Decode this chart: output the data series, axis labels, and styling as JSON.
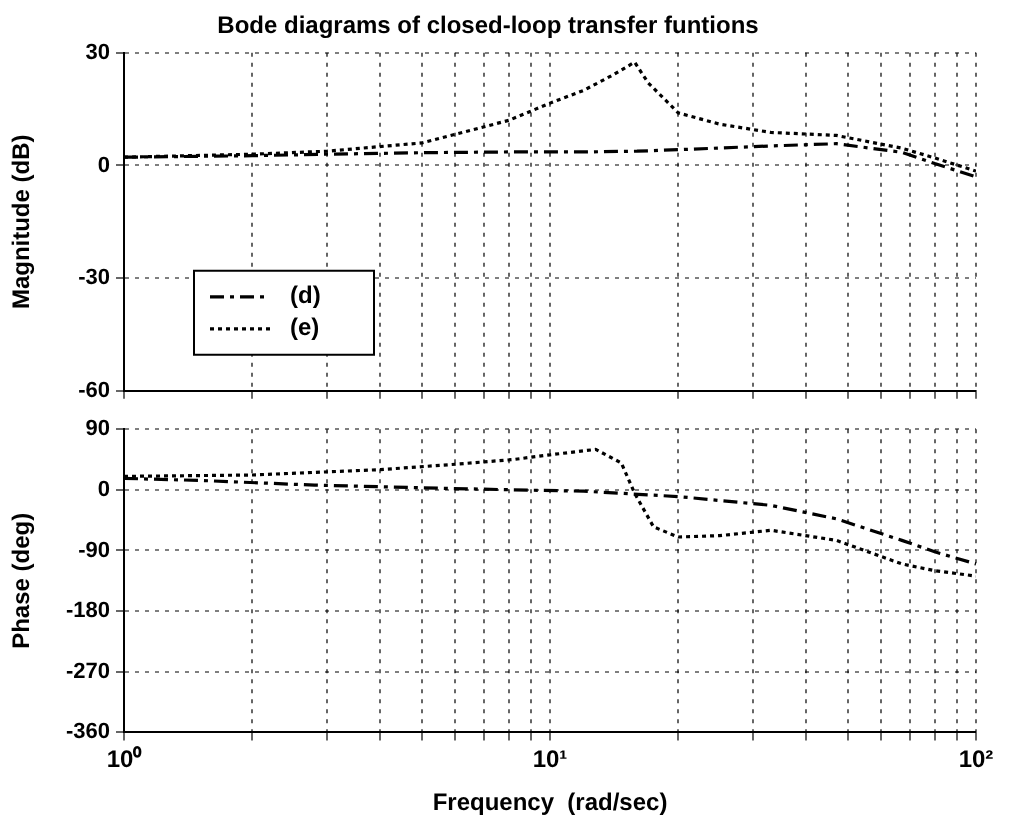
{
  "chart_data": [
    {
      "type": "line",
      "title": "Bode diagrams of closed-loop transfer funtions",
      "ylabel": "Magnitude (dB)",
      "xlim": [
        1,
        100
      ],
      "ylim": [
        -60,
        30
      ],
      "log": "x",
      "grid": true,
      "legend": "bottom left",
      "tick_labels": "y",
      "marker": "none",
      "xticks": [
        {
          "value": 1,
          "label": null
        },
        {
          "value": 2,
          "label": null
        },
        {
          "value": 3,
          "label": null
        },
        {
          "value": 4,
          "label": null
        },
        {
          "value": 5,
          "label": null
        },
        {
          "value": 6,
          "label": null
        },
        {
          "value": 7,
          "label": null
        },
        {
          "value": 8,
          "label": null
        },
        {
          "value": 9,
          "label": null
        },
        {
          "value": 10,
          "label": null
        },
        {
          "value": 20,
          "label": null
        },
        {
          "value": 30,
          "label": null
        },
        {
          "value": 40,
          "label": null
        },
        {
          "value": 50,
          "label": null
        },
        {
          "value": 60,
          "label": null
        },
        {
          "value": 70,
          "label": null
        },
        {
          "value": 80,
          "label": null
        },
        {
          "value": 90,
          "label": null
        },
        {
          "value": 100,
          "label": null
        }
      ],
      "yticks": [
        -60,
        -30,
        0,
        30
      ],
      "series": [
        {
          "name": "(d)",
          "color": "#000000",
          "line_style": "dashed",
          "x": [
            1,
            2,
            3,
            5,
            8,
            12,
            16,
            20,
            33,
            47,
            67,
            80,
            100
          ],
          "values": [
            2.2,
            2.6,
            3,
            3.4,
            3.6,
            3.6,
            3.8,
            4.2,
            5.2,
            5.8,
            3.5,
            0.5,
            -3
          ]
        },
        {
          "name": "(e)",
          "color": "#000000",
          "line_style": "dotted",
          "x": [
            1,
            2,
            3,
            5,
            8,
            10,
            12,
            14,
            15.8,
            17,
            20,
            25,
            33,
            47,
            67,
            80,
            100
          ],
          "values": [
            2.2,
            3,
            3.8,
            6,
            12,
            16.6,
            20,
            24,
            27.5,
            22,
            14,
            11,
            8.8,
            8,
            4.6,
            2,
            -1.5
          ]
        }
      ]
    },
    {
      "type": "line",
      "xlabel": "Frequency  (rad/sec)",
      "ylabel": "Phase (deg)",
      "xlim": [
        1,
        100
      ],
      "ylim": [
        -360,
        90
      ],
      "log": "x",
      "grid": true,
      "marker": "none",
      "xticks": [
        {
          "value": 1,
          "label": "10⁰"
        },
        {
          "value": 2,
          "label": null
        },
        {
          "value": 3,
          "label": null
        },
        {
          "value": 4,
          "label": null
        },
        {
          "value": 5,
          "label": null
        },
        {
          "value": 6,
          "label": null
        },
        {
          "value": 7,
          "label": null
        },
        {
          "value": 8,
          "label": null
        },
        {
          "value": 9,
          "label": null
        },
        {
          "value": 10,
          "label": "10¹"
        },
        {
          "value": 20,
          "label": null
        },
        {
          "value": 30,
          "label": null
        },
        {
          "value": 40,
          "label": null
        },
        {
          "value": 50,
          "label": null
        },
        {
          "value": 60,
          "label": null
        },
        {
          "value": 70,
          "label": null
        },
        {
          "value": 80,
          "label": null
        },
        {
          "value": 90,
          "label": null
        },
        {
          "value": 100,
          "label": "10²"
        }
      ],
      "yticks": [
        -360,
        -270,
        -180,
        -90,
        0,
        90
      ],
      "series": [
        {
          "color": "#000000",
          "line_style": "dashed",
          "x": [
            1,
            1.5,
            2.8,
            5,
            8.2,
            12,
            20,
            33,
            47,
            67,
            80,
            100
          ],
          "values": [
            17,
            14,
            7,
            3,
            0,
            -2,
            -10,
            -23,
            -43,
            -75,
            -92,
            -110
          ]
        },
        {
          "color": "#000000",
          "line_style": "dotted",
          "x": [
            1,
            2,
            4,
            6,
            8.2,
            10,
            12.8,
            14.7,
            15.8,
            17.5,
            20,
            25,
            33,
            47,
            67,
            80,
            100
          ],
          "values": [
            20,
            22,
            30,
            38,
            45,
            52,
            60,
            40,
            -5,
            -55,
            -70,
            -68,
            -60,
            -75,
            -110,
            -120,
            -128
          ]
        }
      ]
    }
  ]
}
